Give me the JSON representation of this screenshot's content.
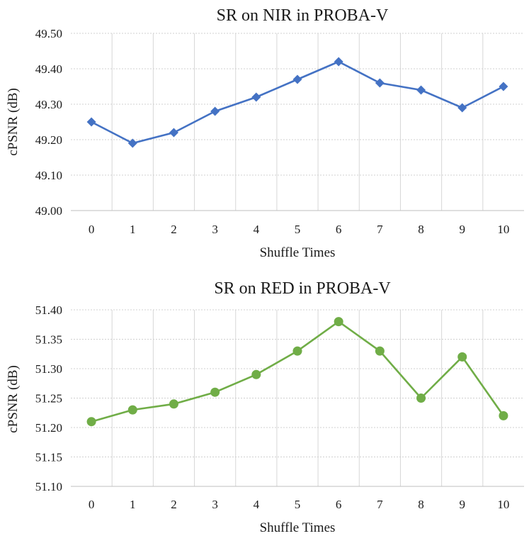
{
  "chart_data": [
    {
      "type": "line",
      "title": "SR on NIR in PROBA-V",
      "xlabel": "Shuffle Times",
      "ylabel": "cPSNR (dB)",
      "x": [
        0,
        1,
        2,
        3,
        4,
        5,
        6,
        7,
        8,
        9,
        10
      ],
      "xtick_labels": [
        "0",
        "1",
        "2",
        "3",
        "4",
        "5",
        "6",
        "7",
        "8",
        "9",
        "10"
      ],
      "yticks": [
        "49.00",
        "49.10",
        "49.20",
        "49.30",
        "49.40",
        "49.50"
      ],
      "ylim": [
        49.0,
        49.5
      ],
      "series": [
        {
          "name": "NIR",
          "color": "#4472C4",
          "marker": "diamond",
          "values": [
            49.25,
            49.19,
            49.22,
            49.28,
            49.32,
            49.37,
            49.42,
            49.36,
            49.34,
            49.29,
            49.35
          ]
        }
      ]
    },
    {
      "type": "line",
      "title": "SR on RED in PROBA-V",
      "xlabel": "Shuffle Times",
      "ylabel": "cPSNR (dB)",
      "x": [
        0,
        1,
        2,
        3,
        4,
        5,
        6,
        7,
        8,
        9,
        10
      ],
      "xtick_labels": [
        "0",
        "1",
        "2",
        "3",
        "4",
        "5",
        "6",
        "7",
        "8",
        "9",
        "10"
      ],
      "yticks": [
        "51.10",
        "51.15",
        "51.20",
        "51.25",
        "51.30",
        "51.35",
        "51.40"
      ],
      "ylim": [
        51.1,
        51.4
      ],
      "series": [
        {
          "name": "RED",
          "color": "#70AD47",
          "marker": "circle",
          "values": [
            51.21,
            51.23,
            51.24,
            51.26,
            51.29,
            51.33,
            51.38,
            51.33,
            51.25,
            51.32,
            51.22
          ]
        }
      ]
    }
  ]
}
